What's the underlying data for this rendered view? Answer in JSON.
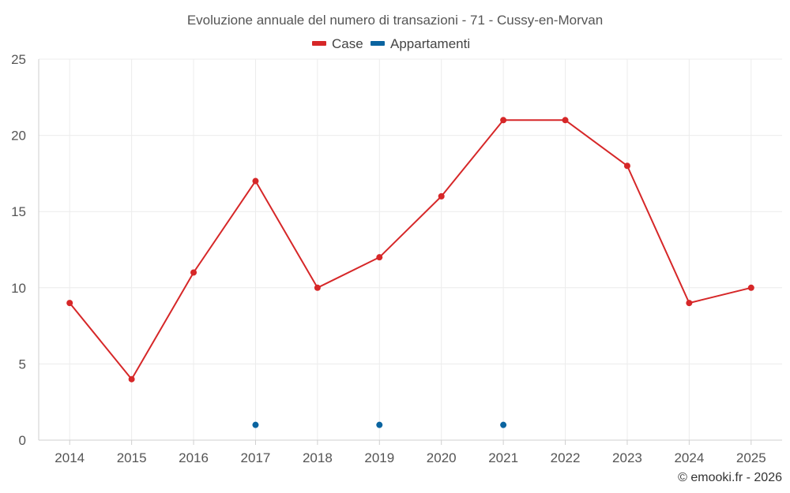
{
  "chart_data": {
    "type": "line",
    "title": "Evoluzione annuale del numero di transazioni - 71 - Cussy-en-Morvan",
    "categories": [
      "2014",
      "2015",
      "2016",
      "2017",
      "2018",
      "2019",
      "2020",
      "2021",
      "2022",
      "2023",
      "2024",
      "2025"
    ],
    "series": [
      {
        "name": "Case",
        "color": "#d62728",
        "line": true,
        "values": [
          9,
          4,
          11,
          17,
          10,
          12,
          16,
          21,
          21,
          18,
          9,
          10
        ]
      },
      {
        "name": "Appartamenti",
        "color": "#0a64a0",
        "line": false,
        "values": [
          null,
          null,
          null,
          1,
          null,
          1,
          null,
          1,
          null,
          null,
          null,
          null
        ]
      }
    ],
    "ylim": [
      0,
      25
    ],
    "yticks": [
      0,
      5,
      10,
      15,
      20,
      25
    ],
    "xlabel": "",
    "ylabel": "",
    "grid": true,
    "legend": "top-center"
  },
  "credit": "© emooki.fr - 2026"
}
